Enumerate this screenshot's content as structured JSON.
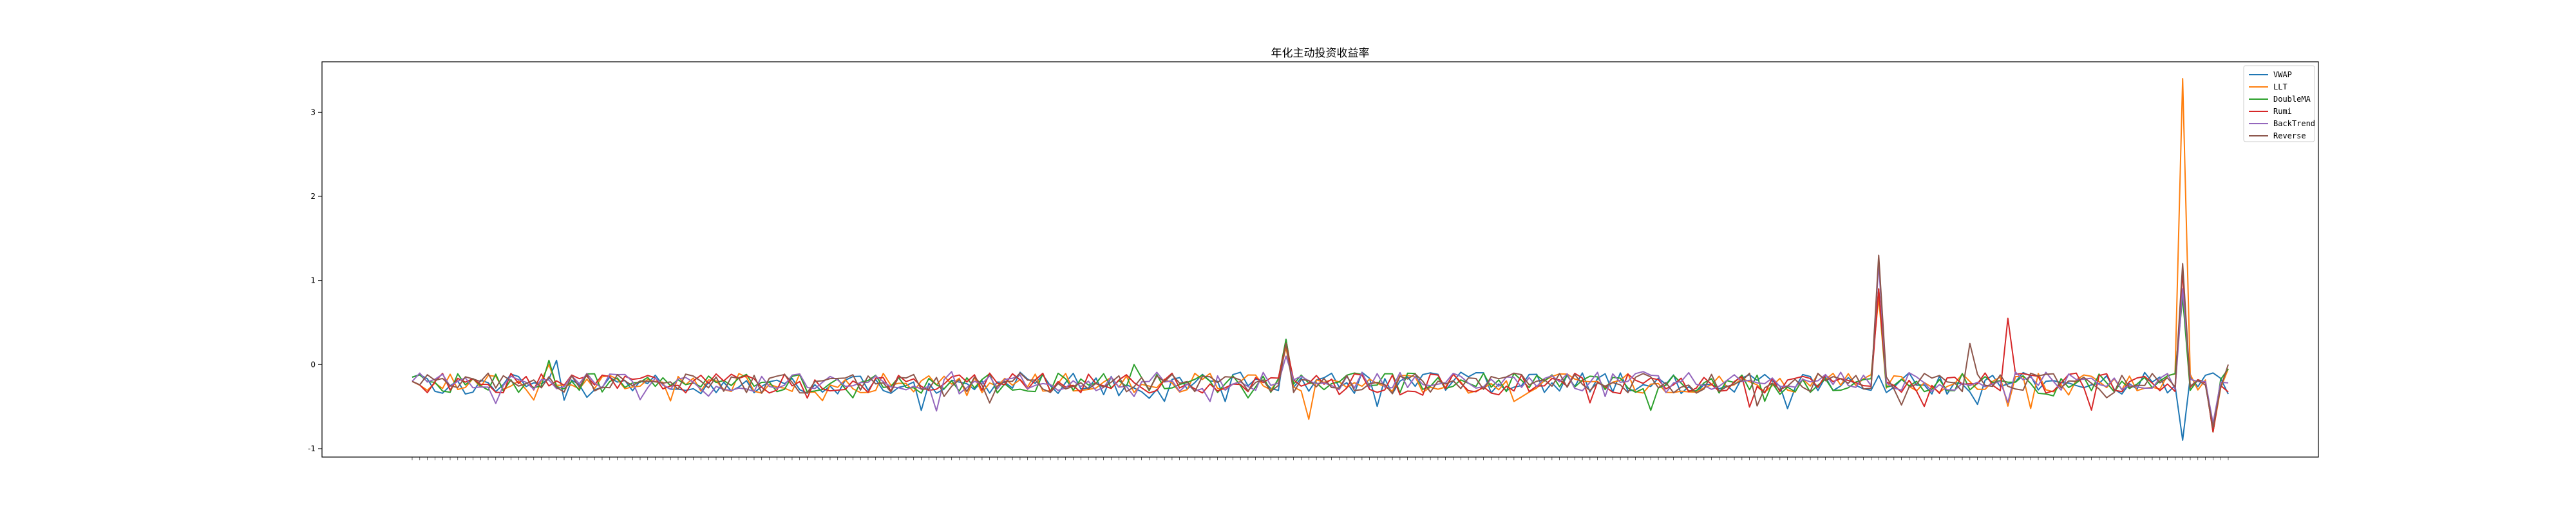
{
  "chart_data": {
    "type": "line",
    "title": "年化主动投资收益率",
    "xlabel": "",
    "ylabel": "",
    "ylim": [
      -1.1,
      3.6
    ],
    "yticks": [
      -1,
      0,
      1,
      2,
      3
    ],
    "x_count": 240,
    "x_tick_labels_note": "",
    "grid": false,
    "legend_position": "top-right",
    "series": [
      {
        "name": "VWAP",
        "color": "#1f77b4",
        "base": -0.22,
        "amp": 0.13,
        "seed": 1,
        "spikes": [
          [
            0,
            -0.15
          ],
          [
            20,
            -0.05
          ],
          [
            60,
            -0.12
          ],
          [
            100,
            -0.5
          ],
          [
            146,
            -0.1
          ],
          [
            180,
            -0.2
          ],
          [
            219,
            0.05
          ],
          [
            222,
            -0.35
          ],
          [
            240,
            -0.4
          ],
          [
            250,
            -0.25
          ],
          [
            300,
            -0.05
          ],
          [
            340,
            0.05
          ],
          [
            367,
            -0.3
          ],
          [
            370,
            0.1
          ],
          [
            400,
            -0.35
          ],
          [
            408,
            -0.4
          ],
          [
            440,
            -0.2
          ],
          [
            460,
            -0.1
          ],
          [
            470,
            -0.4
          ],
          [
            510,
            -0.15
          ],
          [
            533,
            -0.1
          ],
          [
            543,
            0.08
          ],
          [
            570,
            0.1
          ],
          [
            630,
            0.1
          ],
          [
            670,
            0.02
          ],
          [
            686,
            -0.3
          ],
          [
            730,
            -0.15
          ],
          [
            740,
            -0.4
          ],
          [
            760,
            -0.45
          ],
          [
            790,
            -0.3
          ],
          [
            828,
            -0.15
          ],
          [
            840,
            -0.1
          ],
          [
            855,
            0.05
          ],
          [
            860,
            -0.4
          ],
          [
            868,
            -0.35
          ],
          [
            876,
            -0.3
          ],
          [
            886,
            -0.2
          ],
          [
            900,
            -0.3
          ],
          [
            910,
            0.1
          ],
          [
            933,
            -0.3
          ],
          [
            944,
            -0.5
          ],
          [
            950,
            -0.55
          ],
          [
            959,
            -0.2
          ],
          [
            966,
            -0.3
          ],
          [
            987,
            -0.1
          ],
          [
            1000,
            -0.45
          ],
          [
            1011,
            -0.3
          ],
          [
            1030,
            -0.1
          ],
          [
            1041,
            -0.2
          ],
          [
            1063,
            -0.4
          ],
          [
            1068,
            -0.35
          ],
          [
            1086,
            -0.1
          ],
          [
            1100,
            -0.2
          ],
          [
            1118,
            -0.3
          ],
          [
            1135,
            -0.3
          ],
          [
            1138,
            -0.25
          ],
          [
            1149,
            -0.2
          ],
          [
            1160,
            -0.4
          ],
          [
            1166,
            -0.5
          ],
          [
            1170,
            0.3
          ],
          [
            1176,
            -0.2
          ],
          [
            1204,
            -0.4
          ],
          [
            1210,
            -0.5
          ],
          [
            1225,
            -0.45
          ],
          [
            1229,
            -0.6
          ],
          [
            1240,
            -0.2
          ],
          [
            1248,
            -0.4
          ],
          [
            1266,
            -0.4
          ],
          [
            1270,
            -0.3
          ],
          [
            1280,
            -0.2
          ],
          [
            1300,
            -0.3
          ],
          [
            1330,
            -0.25
          ],
          [
            1355,
            -0.15
          ],
          [
            1360,
            -0.3
          ],
          [
            1392,
            -0.4
          ],
          [
            1399,
            -0.3
          ],
          [
            1440,
            -0.2
          ],
          [
            1462,
            0.0
          ],
          [
            1479,
            0.1
          ],
          [
            1513,
            -0.4
          ],
          [
            1521,
            -0.1
          ],
          [
            1527,
            -0.45
          ],
          [
            1560,
            -0.1
          ],
          [
            1573,
            -0.2
          ],
          [
            1584,
            -0.6
          ],
          [
            1598,
            -0.3
          ],
          [
            1607,
            -0.25
          ],
          [
            1617,
            -0.4
          ],
          [
            1640,
            -0.3
          ],
          [
            1649,
            -0.2
          ],
          [
            1660,
            -0.15
          ],
          [
            1667,
            -0.5
          ],
          [
            1681,
            -0.35
          ],
          [
            1702,
            -0.25
          ],
          [
            1709,
            -0.4
          ],
          [
            1725,
            -0.3
          ],
          [
            1731,
            -0.45
          ],
          [
            1743,
            -0.3
          ],
          [
            1745,
            -0.55
          ],
          [
            1777,
            -0.5
          ],
          [
            1785,
            -0.4
          ],
          [
            1805,
            -0.2
          ],
          [
            1828,
            -0.35
          ],
          [
            1837,
            -0.45
          ],
          [
            1844,
            -0.3
          ],
          [
            1851,
            -0.5
          ],
          [
            1867,
            -0.25
          ],
          [
            1876,
            0.0
          ],
          [
            1911,
            -0.3
          ],
          [
            1941,
            -0.35
          ],
          [
            1975,
            0.0
          ],
          [
            1985,
            -0.45
          ],
          [
            2000,
            -0.35
          ],
          [
            2002,
            -0.3
          ],
          [
            2021,
            -0.25
          ],
          [
            2034,
            -0.3
          ],
          [
            2037,
            -0.4
          ],
          [
            2055,
            -0.4
          ],
          [
            2078,
            -0.3
          ],
          [
            2087,
            -0.2
          ],
          [
            2107,
            -0.3
          ],
          [
            2114,
            -0.1
          ],
          [
            2152,
            -0.35
          ],
          [
            2169,
            -0.4
          ],
          [
            2172,
            -0.2
          ],
          [
            2178,
            -0.5
          ],
          [
            2192,
            -0.45
          ],
          [
            2218,
            -0.2
          ],
          [
            2238,
            -0.6
          ],
          [
            2255,
            -0.3
          ],
          [
            2263,
            -0.45
          ],
          [
            2279,
            -0.25
          ],
          [
            2288,
            -0.3
          ],
          [
            2318,
            -0.2
          ],
          [
            2330,
            -0.15
          ],
          [
            2351,
            -0.1
          ],
          [
            2364,
            -0.3
          ],
          [
            2382,
            -0.35
          ],
          [
            2411,
            -0.2
          ],
          [
            2422,
            -0.5
          ],
          [
            2448,
            -0.45
          ],
          [
            2471,
            -0.3
          ],
          [
            2477,
            -0.4
          ],
          [
            2498,
            -0.35
          ],
          [
            2518,
            -0.3
          ],
          [
            2540,
            -0.4
          ],
          [
            2569,
            -0.4
          ],
          [
            2581,
            -0.05
          ],
          [
            2601,
            -0.1
          ],
          [
            2622,
            -0.15
          ],
          [
            2635,
            0.0
          ],
          [
            2673,
            0.0
          ],
          [
            2684,
            -0.3
          ],
          [
            2705,
            -0.2
          ],
          [
            2726,
            -0.15
          ],
          [
            2747,
            -0.3
          ],
          [
            2760,
            -0.5
          ],
          [
            2800,
            -0.15
          ],
          [
            2818,
            -0.3
          ],
          [
            2839,
            -0.3
          ],
          [
            2857,
            -0.55
          ],
          [
            2876,
            -0.4
          ],
          [
            2880,
            -0.2
          ],
          [
            2900,
            0.05
          ],
          [
            2913,
            -0.1
          ],
          [
            2940,
            -0.15
          ],
          [
            2960,
            0.05
          ],
          [
            2985,
            0.1
          ],
          [
            3010,
            0.0
          ],
          [
            3030,
            -0.1
          ],
          [
            3049,
            -0.45
          ],
          [
            3063,
            -0.1
          ],
          [
            3078,
            -0.3
          ],
          [
            3103,
            -0.4
          ],
          [
            3115,
            -0.25
          ],
          [
            3127,
            -0.45
          ],
          [
            3148,
            -0.15
          ],
          [
            3174,
            -0.1
          ],
          [
            3189,
            -0.2
          ],
          [
            3200,
            -0.3
          ],
          [
            3237,
            0.0
          ],
          [
            3244,
            -0.3
          ],
          [
            3270,
            -0.1
          ],
          [
            3307,
            -0.1
          ],
          [
            3315,
            0.3
          ],
          [
            3336,
            -0.3
          ],
          [
            3370,
            -0.2
          ],
          [
            3383,
            -0.35
          ],
          [
            3400,
            -0.15
          ],
          [
            3406,
            -0.2
          ],
          [
            3421,
            -0.3
          ],
          [
            3440,
            -0.1
          ],
          [
            3453,
            -0.05
          ],
          [
            3460,
            -0.3
          ],
          [
            3470,
            -0.2
          ],
          [
            3500,
            -0.6
          ],
          [
            3514,
            -0.1
          ],
          [
            3523,
            -0.2
          ],
          [
            3540,
            -0.4
          ],
          [
            3560,
            -0.15
          ],
          [
            3568,
            -0.2
          ],
          [
            3579,
            -0.9
          ],
          [
            3592,
            -0.7
          ],
          [
            3600,
            -0.5
          ]
        ]
      },
      {
        "name": "LLT",
        "color": "#ff7f0e",
        "base": -0.22,
        "amp": 0.12,
        "seed": 2,
        "spikes": []
      },
      {
        "name": "DoubleMA",
        "color": "#2ca02c",
        "base": -0.22,
        "amp": 0.12,
        "seed": 3,
        "spikes": []
      },
      {
        "name": "Rumi",
        "color": "#d62728",
        "base": -0.22,
        "amp": 0.12,
        "seed": 4,
        "spikes": []
      },
      {
        "name": "BackTrend",
        "color": "#9467bd",
        "base": -0.2,
        "amp": 0.12,
        "seed": 5,
        "spikes": []
      },
      {
        "name": "Reverse",
        "color": "#8c564b",
        "base": -0.22,
        "amp": 0.12,
        "seed": 6,
        "spikes": []
      }
    ],
    "key_points": {
      "VWAP": [
        [
          0,
          -0.15
        ],
        [
          19,
          0.05
        ],
        [
          115,
          0.3
        ],
        [
          154,
          -0.1
        ],
        [
          173,
          -0.25
        ],
        [
          186,
          -0.15
        ],
        [
          200,
          -0.35
        ],
        [
          215,
          -0.2
        ],
        [
          225,
          -0.35
        ],
        [
          233,
          -0.9
        ],
        [
          237,
          -0.1
        ],
        [
          239,
          -0.35
        ]
      ],
      "LLT": [
        [
          0,
          -0.2
        ],
        [
          18,
          0.0
        ],
        [
          115,
          0.2
        ],
        [
          118,
          -0.65
        ],
        [
          193,
          0.8
        ],
        [
          215,
          -0.3
        ],
        [
          225,
          -0.3
        ],
        [
          233,
          3.4
        ],
        [
          237,
          -0.8
        ],
        [
          239,
          -0.05
        ]
      ],
      "DoubleMA": [
        [
          0,
          -0.15
        ],
        [
          18,
          0.05
        ],
        [
          95,
          0.0
        ],
        [
          115,
          0.3
        ],
        [
          193,
          0.9
        ],
        [
          215,
          -0.35
        ],
        [
          233,
          0.8
        ],
        [
          237,
          -0.8
        ],
        [
          239,
          -0.05
        ]
      ],
      "Rumi": [
        [
          0,
          -0.2
        ],
        [
          115,
          0.25
        ],
        [
          193,
          0.9
        ],
        [
          210,
          0.55
        ],
        [
          233,
          1.1
        ],
        [
          237,
          -0.8
        ]
      ],
      "BackTrend": [
        [
          0,
          -0.2
        ],
        [
          115,
          0.1
        ],
        [
          193,
          1.2
        ],
        [
          233,
          0.9
        ],
        [
          237,
          -0.7
        ]
      ],
      "Reverse": [
        [
          0,
          -0.2
        ],
        [
          115,
          0.25
        ],
        [
          193,
          1.3
        ],
        [
          205,
          0.25
        ],
        [
          233,
          1.2
        ],
        [
          237,
          -0.75
        ],
        [
          239,
          0.0
        ]
      ]
    }
  }
}
